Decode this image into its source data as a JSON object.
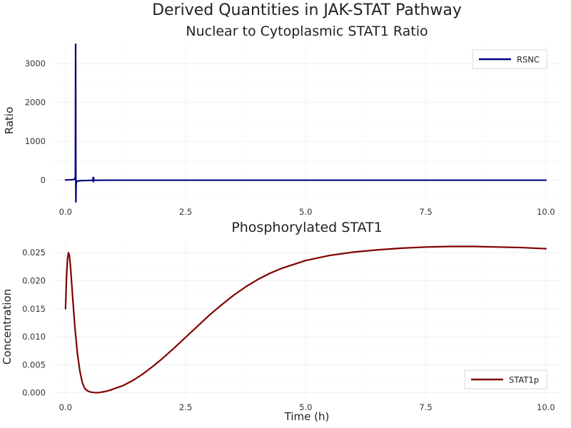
{
  "figure": {
    "title": "Derived Quantities in JAK-STAT Pathway"
  },
  "chart_data": [
    {
      "type": "line",
      "title": "Nuclear to Cytoplasmic STAT1 Ratio",
      "xlabel": "",
      "ylabel": "Ratio",
      "xlim": [
        -0.25,
        10.3
      ],
      "ylim": [
        -560,
        3500
      ],
      "xticks": [
        0,
        2.5,
        5,
        7.5,
        10
      ],
      "xtick_labels": [
        "0.0",
        "2.5",
        "5.0",
        "7.5",
        "10.0"
      ],
      "yticks": [
        0,
        1000,
        2000,
        3000
      ],
      "ytick_labels": [
        "0",
        "1000",
        "2000",
        "3000"
      ],
      "grid": true,
      "legend": "top-right",
      "series": [
        {
          "name": "RSNC",
          "color": "#00007f",
          "x": [
            0,
            0.05,
            0.1,
            0.15,
            0.18,
            0.2,
            0.205,
            0.21,
            0.215,
            0.22,
            0.225,
            0.23,
            0.25,
            0.3,
            0.4,
            0.5,
            0.57,
            0.575,
            0.58,
            0.585,
            0.59,
            0.6,
            0.7,
            1,
            2,
            3,
            4,
            5,
            6,
            7,
            8,
            9,
            10
          ],
          "y": [
            5,
            6,
            8,
            12,
            20,
            45,
            120,
            3500,
            -560,
            -120,
            -60,
            -40,
            -25,
            -15,
            -10,
            -8,
            -5,
            70,
            -40,
            55,
            -8,
            -5,
            -3,
            -1,
            -1,
            -1,
            -1,
            -1,
            -1,
            -1,
            -1,
            -1,
            -1
          ]
        }
      ]
    },
    {
      "type": "line",
      "title": "Phosphorylated STAT1",
      "xlabel": "Time (h)",
      "ylabel": "Concentration",
      "xlim": [
        -0.25,
        10.3
      ],
      "ylim": [
        -0.0008,
        0.0268
      ],
      "xticks": [
        0,
        2.5,
        5,
        7.5,
        10
      ],
      "xtick_labels": [
        "0.0",
        "2.5",
        "5.0",
        "7.5",
        "10.0"
      ],
      "yticks": [
        0,
        0.005,
        0.01,
        0.015,
        0.02,
        0.025
      ],
      "ytick_labels": [
        "0.000",
        "0.005",
        "0.010",
        "0.015",
        "0.020",
        "0.025"
      ],
      "grid": true,
      "legend": "bottom-right",
      "series": [
        {
          "name": "STAT1p",
          "color": "#7f0000",
          "x": [
            0,
            0.02,
            0.04,
            0.06,
            0.08,
            0.1,
            0.12,
            0.15,
            0.2,
            0.25,
            0.3,
            0.35,
            0.4,
            0.45,
            0.5,
            0.55,
            0.6,
            0.65,
            0.7,
            0.8,
            0.9,
            1.0,
            1.2,
            1.4,
            1.6,
            1.8,
            2.0,
            2.25,
            2.5,
            2.75,
            3.0,
            3.25,
            3.5,
            3.75,
            4.0,
            4.25,
            4.5,
            5.0,
            5.5,
            6.0,
            6.5,
            7.0,
            7.5,
            8.0,
            8.5,
            9.0,
            9.5,
            10.0
          ],
          "y": [
            0.015,
            0.0205,
            0.0238,
            0.025,
            0.0245,
            0.0228,
            0.0205,
            0.0168,
            0.0112,
            0.0068,
            0.0038,
            0.0018,
            0.0008,
            0.0004,
            0.0002,
            0.0001,
            5e-05,
            3e-05,
            5e-05,
            0.0002,
            0.0004,
            0.0007,
            0.0013,
            0.0022,
            0.0033,
            0.0046,
            0.006,
            0.0079,
            0.0099,
            0.0119,
            0.0139,
            0.0157,
            0.0174,
            0.0189,
            0.0202,
            0.0213,
            0.0222,
            0.0236,
            0.0245,
            0.0251,
            0.0255,
            0.0258,
            0.026,
            0.0261,
            0.0261,
            0.026,
            0.0259,
            0.0257
          ]
        }
      ]
    }
  ]
}
